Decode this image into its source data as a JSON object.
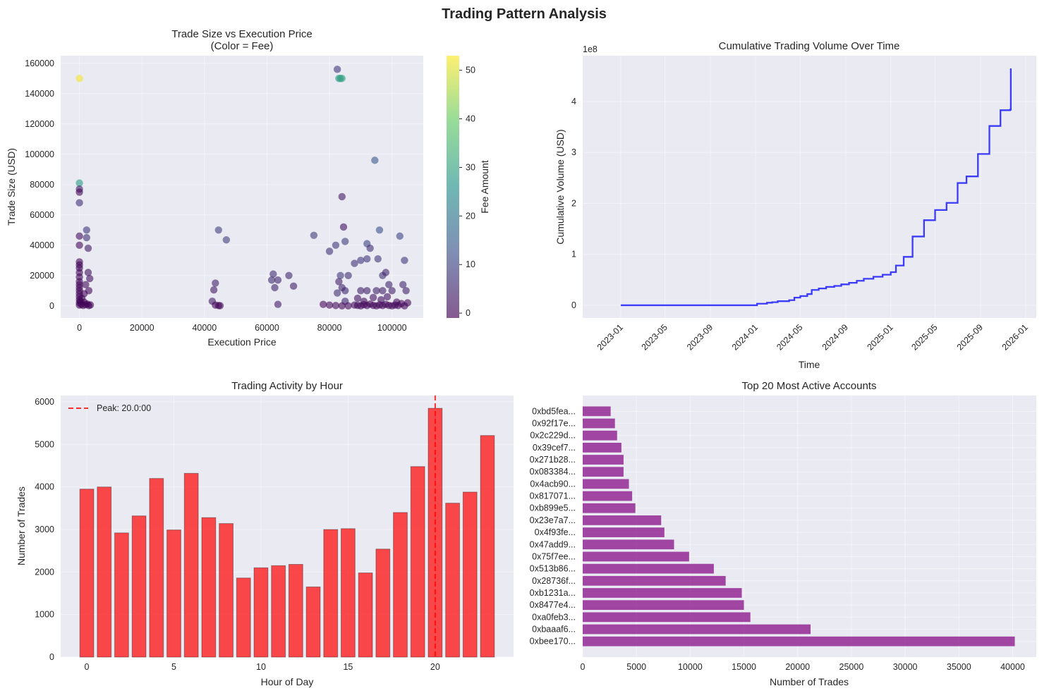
{
  "figure": {
    "title": "Trading Pattern Analysis"
  },
  "chart_data": [
    {
      "type": "scatter",
      "title_line1": "Trade Size vs Execution Price",
      "title_line2": "(Color = Fee)",
      "xlabel": "Execution Price",
      "ylabel": "Trade Size (USD)",
      "xlim": [
        -6000,
        110000
      ],
      "ylim": [
        -8000,
        165000
      ],
      "xticks": [
        0,
        20000,
        40000,
        60000,
        80000,
        100000
      ],
      "yticks": [
        0,
        20000,
        40000,
        60000,
        80000,
        100000,
        120000,
        140000,
        160000
      ],
      "colorbar": {
        "label": "Fee Amount",
        "ticks": [
          0,
          10,
          20,
          30,
          40,
          50
        ],
        "range": [
          -1,
          53
        ]
      },
      "points": [
        [
          0,
          150000,
          52
        ],
        [
          0,
          81000,
          28
        ],
        [
          0,
          77000,
          3
        ],
        [
          0,
          75000,
          0
        ],
        [
          0,
          68000,
          6
        ],
        [
          0,
          46000,
          1
        ],
        [
          0,
          40000,
          0
        ],
        [
          0,
          29000,
          0
        ],
        [
          0,
          27000,
          0
        ],
        [
          0,
          25000,
          0
        ],
        [
          0,
          22000,
          0
        ],
        [
          0,
          19000,
          0
        ],
        [
          0,
          16000,
          0
        ],
        [
          0,
          14000,
          0
        ],
        [
          0,
          12000,
          0
        ],
        [
          0,
          10000,
          0
        ],
        [
          0,
          8000,
          0
        ],
        [
          0,
          6000,
          0
        ],
        [
          0,
          4000,
          0
        ],
        [
          0,
          2000,
          0
        ],
        [
          0,
          500,
          0
        ],
        [
          300,
          3000,
          0
        ],
        [
          600,
          1000,
          0
        ],
        [
          800,
          5000,
          0
        ],
        [
          1200,
          300,
          0
        ],
        [
          1500,
          2500,
          0
        ],
        [
          2000,
          800,
          0
        ],
        [
          2500,
          1200,
          0
        ],
        [
          3000,
          200,
          0
        ],
        [
          3500,
          600,
          0
        ],
        [
          2300,
          50000,
          8
        ],
        [
          2300,
          45000,
          7
        ],
        [
          2800,
          38000,
          3
        ],
        [
          2800,
          22000,
          2
        ],
        [
          3300,
          18000,
          1
        ],
        [
          3000,
          10000,
          0
        ],
        [
          2000,
          14000,
          1
        ],
        [
          1500,
          8000,
          0
        ],
        [
          42500,
          3000,
          3
        ],
        [
          43000,
          10500,
          3
        ],
        [
          43500,
          15000,
          4
        ],
        [
          44500,
          50000,
          9
        ],
        [
          47000,
          43500,
          9
        ],
        [
          43500,
          500,
          0
        ],
        [
          44500,
          200,
          0
        ],
        [
          45000,
          100,
          0
        ],
        [
          61500,
          17000,
          6
        ],
        [
          62000,
          21000,
          6
        ],
        [
          62500,
          12000,
          5
        ],
        [
          63500,
          17000,
          5
        ],
        [
          63500,
          1000,
          3
        ],
        [
          67000,
          20000,
          5
        ],
        [
          68500,
          13000,
          4
        ],
        [
          75000,
          46500,
          9
        ],
        [
          80000,
          36000,
          7
        ],
        [
          82000,
          40000,
          8
        ],
        [
          82500,
          8500,
          6
        ],
        [
          83000,
          16000,
          4
        ],
        [
          83500,
          20000,
          8
        ],
        [
          84000,
          72000,
          3
        ],
        [
          84000,
          12000,
          5
        ],
        [
          84500,
          52000,
          2
        ],
        [
          85000,
          3000,
          5
        ],
        [
          85000,
          42500,
          9
        ],
        [
          85000,
          10000,
          5
        ],
        [
          86000,
          20000,
          6
        ],
        [
          82500,
          156000,
          8
        ],
        [
          83000,
          150000,
          28
        ],
        [
          83500,
          150000,
          29
        ],
        [
          84000,
          150000,
          30
        ],
        [
          94500,
          96000,
          14
        ],
        [
          88000,
          28000,
          7
        ],
        [
          90000,
          30000,
          8
        ],
        [
          92000,
          31000,
          8
        ],
        [
          92000,
          41000,
          10
        ],
        [
          93000,
          38000,
          7
        ],
        [
          95500,
          31000,
          8
        ],
        [
          96000,
          50000,
          12
        ],
        [
          97000,
          20000,
          7
        ],
        [
          98000,
          22000,
          5
        ],
        [
          99000,
          14000,
          5
        ],
        [
          102500,
          46000,
          10
        ],
        [
          103500,
          14000,
          5
        ],
        [
          104000,
          30000,
          8
        ],
        [
          90000,
          10000,
          4
        ],
        [
          92000,
          10000,
          4
        ],
        [
          95000,
          10000,
          4
        ],
        [
          97000,
          10000,
          4
        ],
        [
          100000,
          10000,
          4
        ],
        [
          104500,
          10000,
          4
        ],
        [
          78000,
          1000,
          0
        ],
        [
          80000,
          500,
          0
        ],
        [
          82000,
          200,
          0
        ],
        [
          84000,
          0,
          0
        ],
        [
          86000,
          0,
          0
        ],
        [
          88000,
          500,
          0
        ],
        [
          89000,
          300,
          0
        ],
        [
          90000,
          0,
          0
        ],
        [
          91000,
          800,
          0
        ],
        [
          92000,
          200,
          0
        ],
        [
          93000,
          1200,
          0
        ],
        [
          94000,
          300,
          0
        ],
        [
          95000,
          0,
          0
        ],
        [
          96000,
          600,
          0
        ],
        [
          97000,
          200,
          0
        ],
        [
          98000,
          1000,
          0
        ],
        [
          99000,
          300,
          0
        ],
        [
          100000,
          0,
          0
        ],
        [
          101000,
          500,
          0
        ],
        [
          102000,
          200,
          0
        ],
        [
          103000,
          1500,
          0
        ],
        [
          104000,
          0,
          0
        ],
        [
          105000,
          2000,
          0
        ],
        [
          89000,
          5000,
          2
        ],
        [
          91000,
          3000,
          1
        ],
        [
          94000,
          5500,
          2
        ],
        [
          96500,
          4000,
          1
        ],
        [
          98500,
          6000,
          2
        ],
        [
          101500,
          2500,
          1
        ]
      ]
    },
    {
      "type": "line",
      "title": "Cumulative Trading Volume Over Time",
      "xlabel": "Time",
      "ylabel": "Cumulative Volume (USD)",
      "offset_text": "1e8",
      "ylim": [
        -0.25,
        4.9
      ],
      "xticks": [
        "2023-01",
        "2023-05",
        "2023-09",
        "2024-01",
        "2024-05",
        "2024-09",
        "2025-01",
        "2025-05",
        "2025-09",
        "2026-01"
      ],
      "yticks": [
        0,
        1,
        2,
        3,
        4
      ],
      "xlim": [
        "2022-09-20",
        "2026-01-30"
      ],
      "line_color": "#0000ff",
      "points": [
        [
          "2023-01-01",
          0
        ],
        [
          "2023-12-31",
          0
        ],
        [
          "2024-01-05",
          0.03
        ],
        [
          "2024-02-01",
          0.05
        ],
        [
          "2024-02-15",
          0.06
        ],
        [
          "2024-03-01",
          0.08
        ],
        [
          "2024-04-01",
          0.1
        ],
        [
          "2024-04-15",
          0.15
        ],
        [
          "2024-05-01",
          0.18
        ],
        [
          "2024-05-20",
          0.22
        ],
        [
          "2024-06-01",
          0.3
        ],
        [
          "2024-06-20",
          0.33
        ],
        [
          "2024-07-10",
          0.36
        ],
        [
          "2024-08-01",
          0.38
        ],
        [
          "2024-08-20",
          0.41
        ],
        [
          "2024-09-10",
          0.44
        ],
        [
          "2024-10-01",
          0.48
        ],
        [
          "2024-10-20",
          0.52
        ],
        [
          "2024-11-15",
          0.56
        ],
        [
          "2024-12-10",
          0.6
        ],
        [
          "2025-01-01",
          0.65
        ],
        [
          "2025-01-15",
          0.78
        ],
        [
          "2025-02-05",
          0.95
        ],
        [
          "2025-03-01",
          1.35
        ],
        [
          "2025-04-01",
          1.67
        ],
        [
          "2025-05-01",
          1.87
        ],
        [
          "2025-06-01",
          2.01
        ],
        [
          "2025-07-01",
          2.4
        ],
        [
          "2025-07-25",
          2.53
        ],
        [
          "2025-08-25",
          2.97
        ],
        [
          "2025-09-25",
          3.52
        ],
        [
          "2025-10-25",
          3.83
        ],
        [
          "2025-11-20",
          3.84
        ],
        [
          "2025-11-22",
          4.65
        ]
      ]
    },
    {
      "type": "bar",
      "title": "Trading Activity by Hour",
      "xlabel": "Hour of Day",
      "ylabel": "Number of Trades",
      "xlim": [
        -1.5,
        24.5
      ],
      "ylim": [
        0,
        6150
      ],
      "xticks": [
        0,
        5,
        10,
        15,
        20
      ],
      "yticks": [
        0,
        1000,
        2000,
        3000,
        4000,
        5000,
        6000
      ],
      "categories": [
        0,
        1,
        2,
        3,
        4,
        5,
        6,
        7,
        8,
        9,
        10,
        11,
        12,
        13,
        14,
        15,
        16,
        17,
        18,
        19,
        20,
        21,
        22,
        23
      ],
      "values": [
        3950,
        4000,
        2920,
        3320,
        4200,
        2990,
        4320,
        3280,
        3140,
        1860,
        2100,
        2150,
        2180,
        1650,
        3000,
        3020,
        1980,
        2540,
        3400,
        4480,
        5850,
        3620,
        3880,
        5210
      ],
      "bar_color": "#ff0000",
      "peak_line": {
        "x": 20,
        "label": "Peak: 20.0:00",
        "color": "#ff0000"
      }
    },
    {
      "type": "bar",
      "orientation": "horizontal",
      "title": "Top 20 Most Active Accounts",
      "xlabel": "Number of Trades",
      "xlim": [
        0,
        42200
      ],
      "xticks": [
        0,
        5000,
        10000,
        15000,
        20000,
        25000,
        30000,
        35000,
        40000
      ],
      "bar_color": "#800080",
      "categories": [
        "0xbee170...",
        "0xbaaaf6...",
        "0xa0feb3...",
        "0x8477e4...",
        "0xb1231a...",
        "0x28736f...",
        "0x513b86...",
        "0x75f7ee...",
        "0x47add9...",
        "0x4f93fe...",
        "0x23e7a7...",
        "0xb899e5...",
        "0x817071...",
        "0x4acb90...",
        "0x083384...",
        "0x271b28...",
        "0x39cef7...",
        "0x2c229d...",
        "0x92f17e...",
        "0xbd5fea..."
      ],
      "values": [
        40200,
        21200,
        15600,
        15000,
        14800,
        13300,
        12200,
        9900,
        8500,
        7600,
        7300,
        4900,
        4600,
        4300,
        3800,
        3800,
        3600,
        3200,
        3000,
        2600
      ]
    }
  ]
}
